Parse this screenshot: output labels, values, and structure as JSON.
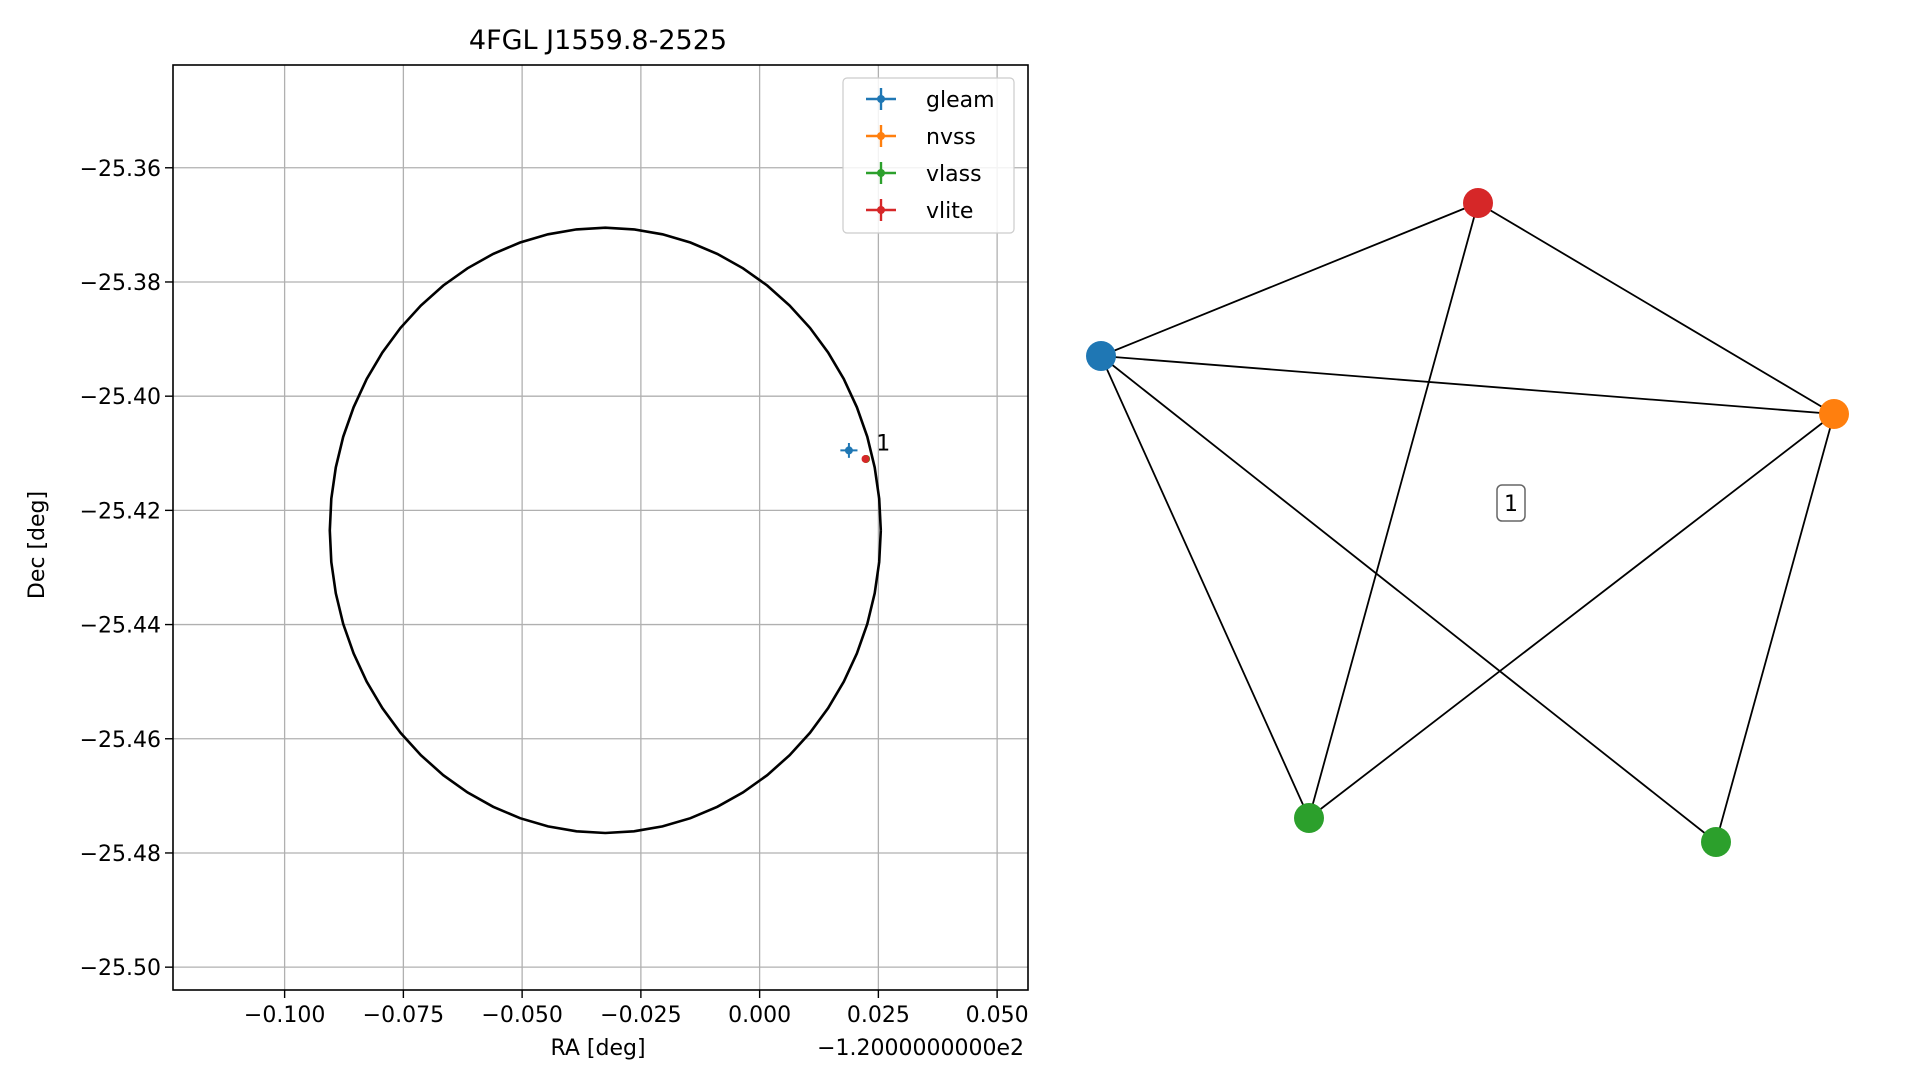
{
  "colors": {
    "gleam": "#1f77b4",
    "nvss": "#ff7f0e",
    "vlass": "#2ca02c",
    "vlite": "#d62728",
    "circle": "#000000",
    "grid": "#b0b0b0"
  },
  "chart_data": [
    {
      "type": "scatter",
      "title": "4FGL J1559.8-2525",
      "xlabel": "RA [deg]",
      "ylabel": "Dec [deg]",
      "x_offset_label": "−1.2000000000e2",
      "xlim": [
        -0.1235,
        0.0565
      ],
      "ylim": [
        -25.504,
        -25.342
      ],
      "x_ticks": [
        -0.1,
        -0.075,
        -0.05,
        -0.025,
        0.0,
        0.025,
        0.05
      ],
      "x_tick_labels": [
        "−0.100",
        "−0.075",
        "−0.050",
        "−0.025",
        "0.000",
        "0.025",
        "0.050"
      ],
      "y_ticks": [
        -25.36,
        -25.38,
        -25.4,
        -25.42,
        -25.44,
        -25.46,
        -25.48,
        -25.5
      ],
      "y_tick_labels": [
        "−25.36",
        "−25.38",
        "−25.40",
        "−25.42",
        "−25.44",
        "−25.46",
        "−25.48",
        "−25.50"
      ],
      "grid": true,
      "legend_position": "top-right",
      "legend": [
        "gleam",
        "nvss",
        "vlass",
        "vlite"
      ],
      "ellipse": {
        "center_x": -0.0325,
        "center_y": -25.4235,
        "semi_x": 0.058,
        "semi_y": 0.053
      },
      "series": [
        {
          "name": "gleam",
          "x": [
            0.0188
          ],
          "y": [
            -25.4095
          ],
          "xerr": [
            0.0018
          ],
          "yerr": [
            0.0013
          ]
        },
        {
          "name": "nvss",
          "x": [
            0.0224
          ],
          "y": [
            -25.411
          ],
          "xerr": [
            0.0003
          ],
          "yerr": [
            0.0003
          ]
        },
        {
          "name": "vlass",
          "x": [
            0.0224
          ],
          "y": [
            -25.411
          ],
          "xerr": [
            0.0001
          ],
          "yerr": [
            0.0001
          ]
        },
        {
          "name": "vlite",
          "x": [
            0.0223
          ],
          "y": [
            -25.411
          ],
          "xerr": [
            0.0004
          ],
          "yerr": [
            0.0004
          ]
        }
      ],
      "annotations": [
        {
          "text": "1",
          "x": 0.0235,
          "y": -25.4085
        }
      ]
    },
    {
      "type": "network",
      "nodes": [
        {
          "id": "blue",
          "series": "gleam"
        },
        {
          "id": "red",
          "series": "vlite"
        },
        {
          "id": "orange",
          "series": "nvss"
        },
        {
          "id": "green-left",
          "series": "vlass"
        },
        {
          "id": "green-right",
          "series": "vlass"
        }
      ],
      "edges": [
        [
          "blue",
          "red"
        ],
        [
          "blue",
          "orange"
        ],
        [
          "blue",
          "green-left"
        ],
        [
          "blue",
          "green-right"
        ],
        [
          "red",
          "orange"
        ],
        [
          "red",
          "green-left"
        ],
        [
          "orange",
          "green-left"
        ],
        [
          "orange",
          "green-right"
        ]
      ],
      "cluster_label": "1"
    }
  ]
}
